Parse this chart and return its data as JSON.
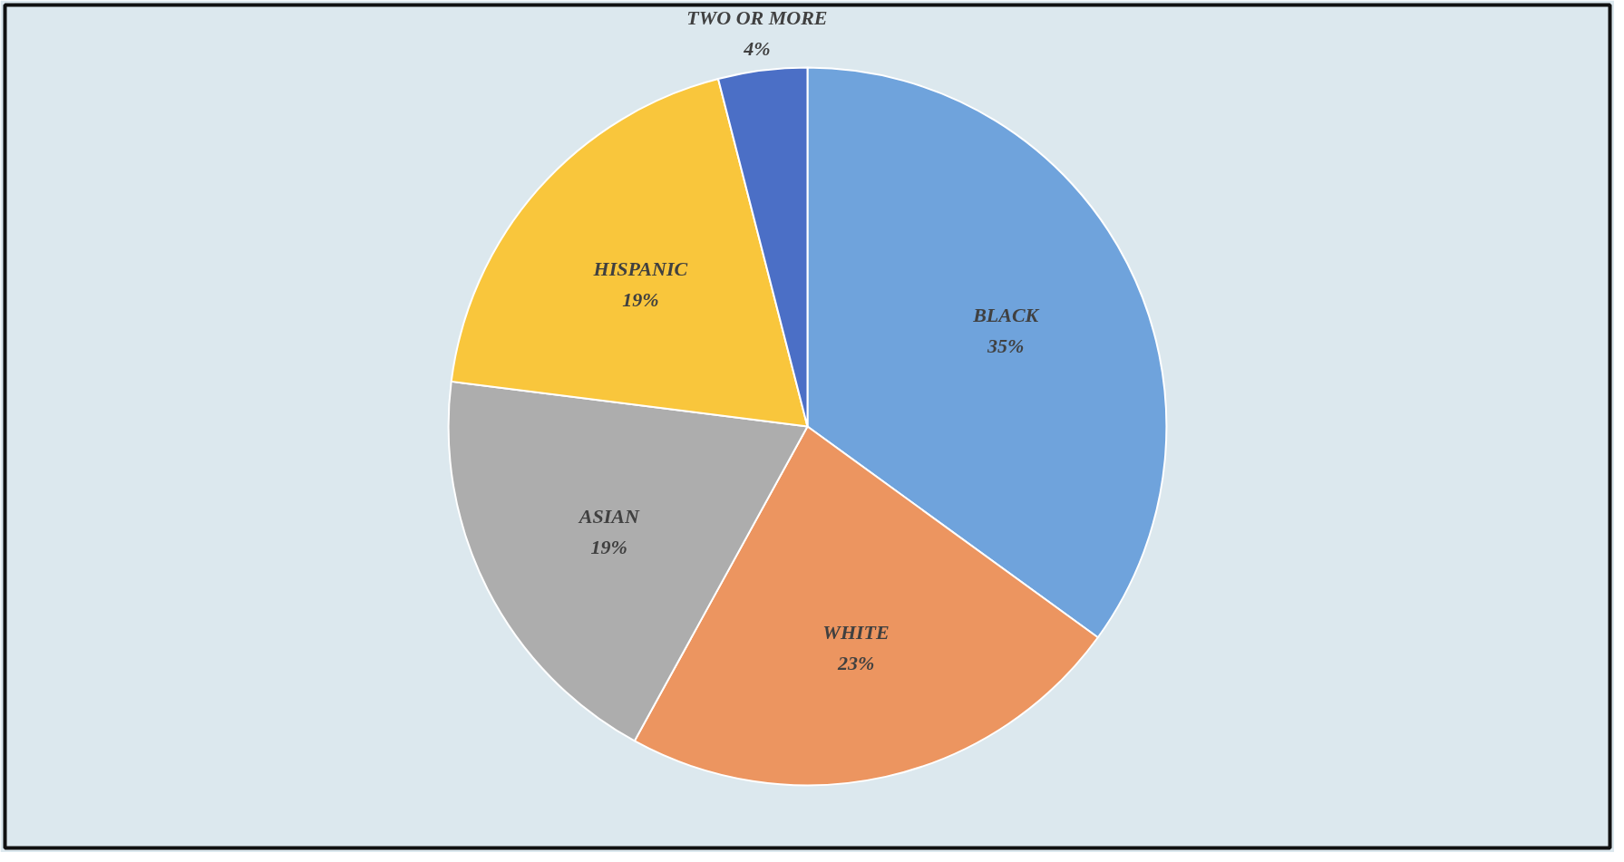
{
  "chart_data": {
    "type": "pie",
    "categories": [
      "BLACK",
      "WHITE",
      "ASIAN",
      "HISPANIC",
      "TWO OR MORE"
    ],
    "values": [
      35,
      23,
      19,
      19,
      4
    ],
    "value_labels": [
      "35%",
      "23%",
      "19%",
      "19%",
      "4%"
    ],
    "colors": [
      "#6fa3dc",
      "#ec9560",
      "#adadad",
      "#f9c63c",
      "#4b6fc6"
    ]
  }
}
